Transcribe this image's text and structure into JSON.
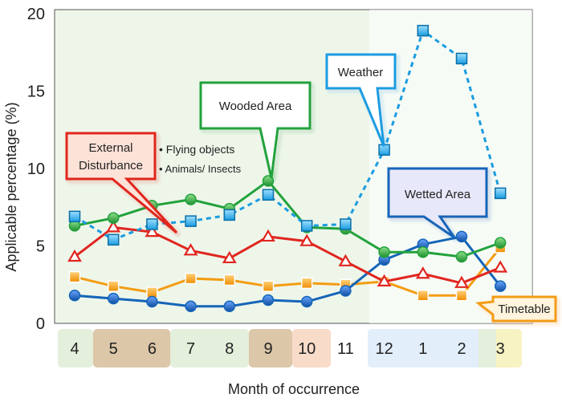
{
  "chart_data": {
    "type": "line",
    "title": "",
    "xlabel": "Month of occurrence",
    "ylabel": "Applicable percentage (%)",
    "ylim": [
      0,
      20
    ],
    "yticks": [
      0,
      5,
      10,
      15,
      20
    ],
    "categories": [
      "4",
      "5",
      "6",
      "7",
      "8",
      "9",
      "10",
      "11",
      "12",
      "1",
      "2",
      "3"
    ],
    "series": [
      {
        "name": "Weather",
        "color": "#1a9ce0",
        "marker": "square",
        "dashed": true,
        "values": [
          6.9,
          5.4,
          6.4,
          6.6,
          7.0,
          8.3,
          6.3,
          6.4,
          11.2,
          18.9,
          17.1,
          8.4
        ]
      },
      {
        "name": "Wooded Area",
        "color": "#22a23c",
        "marker": "circle",
        "dashed": false,
        "values": [
          6.3,
          6.8,
          7.6,
          8.0,
          7.4,
          9.2,
          6.2,
          6.1,
          4.6,
          4.6,
          4.3,
          5.2
        ]
      },
      {
        "name": "External Disturbance",
        "color": "#e0261f",
        "marker": "triangle",
        "dashed": false,
        "values": [
          4.3,
          6.2,
          5.9,
          4.7,
          4.2,
          5.6,
          5.3,
          4.0,
          2.7,
          3.2,
          2.6,
          3.6
        ]
      },
      {
        "name": "Wetted Area",
        "color": "#1565b8",
        "marker": "circle",
        "dashed": false,
        "values": [
          1.8,
          1.6,
          1.4,
          1.1,
          1.1,
          1.5,
          1.4,
          2.1,
          4.1,
          5.1,
          5.6,
          2.4
        ]
      },
      {
        "name": "Timetable",
        "color": "#f39c12",
        "marker": "square",
        "dashed": false,
        "values": [
          3.0,
          2.4,
          2.0,
          2.9,
          2.8,
          2.4,
          2.6,
          2.5,
          2.7,
          1.8,
          1.8,
          4.9
        ]
      }
    ],
    "bullets": [
      "• Flying objects",
      "• Animals/ Insects"
    ],
    "grid": false,
    "legend": "callout boxes"
  }
}
